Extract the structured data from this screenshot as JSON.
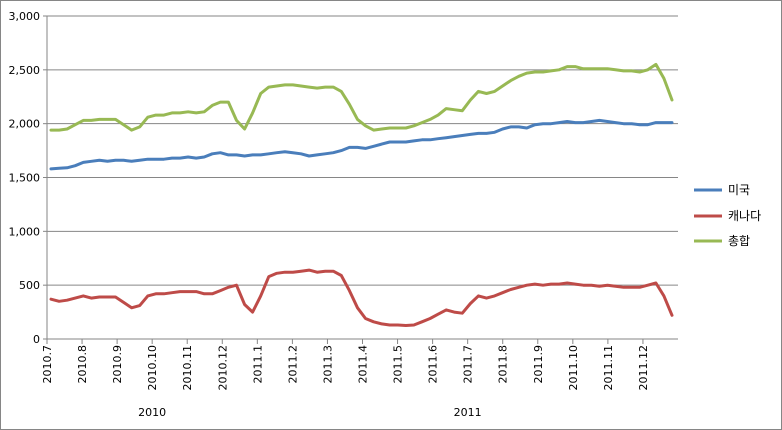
{
  "chart_data": {
    "type": "line",
    "title": "",
    "xlabel": "",
    "ylabel": "",
    "ylim": [
      0,
      3000
    ],
    "y_ticks": [
      "0",
      "500",
      "1,000",
      "1,500",
      "2,000",
      "2,500",
      "3,000"
    ],
    "x_tick_labels": [
      "2010.7",
      "2010.8",
      "2010.9",
      "2010.10",
      "2010.11",
      "2010.12",
      "2011.1",
      "2011.2",
      "2011.3",
      "2011.4",
      "2011.5",
      "2011.6",
      "2011.7",
      "2011.8",
      "2011.9",
      "2011.10",
      "2011.11",
      "2011.12"
    ],
    "year_labels": [
      "2010",
      "2011"
    ],
    "grid": "horizontal",
    "legend_position": "right",
    "colors": {
      "미국": "#4a7ebb",
      "캐나다": "#be4b48",
      "총합": "#98b954",
      "grid": "#868686"
    },
    "series": [
      {
        "name": "미국",
        "values": [
          1580,
          1585,
          1590,
          1610,
          1640,
          1650,
          1660,
          1650,
          1660,
          1660,
          1650,
          1660,
          1670,
          1670,
          1670,
          1680,
          1680,
          1690,
          1680,
          1690,
          1720,
          1730,
          1710,
          1710,
          1700,
          1710,
          1710,
          1720,
          1730,
          1740,
          1730,
          1720,
          1700,
          1710,
          1720,
          1730,
          1750,
          1780,
          1780,
          1770,
          1790,
          1810,
          1830,
          1830,
          1830,
          1840,
          1850,
          1850,
          1860,
          1870,
          1880,
          1890,
          1900,
          1910,
          1910,
          1920,
          1950,
          1970,
          1970,
          1960,
          1990,
          2000,
          2000,
          2010,
          2020,
          2010,
          2010,
          2020,
          2030,
          2020,
          2010,
          2000,
          2000,
          1990,
          1990,
          2010,
          2010,
          2010
        ]
      },
      {
        "name": "캐나다",
        "values": [
          370,
          350,
          360,
          380,
          400,
          380,
          390,
          390,
          390,
          340,
          290,
          310,
          400,
          420,
          420,
          430,
          440,
          440,
          440,
          420,
          420,
          450,
          480,
          500,
          320,
          250,
          400,
          580,
          610,
          620,
          620,
          630,
          640,
          620,
          630,
          630,
          590,
          450,
          290,
          190,
          160,
          140,
          130,
          130,
          125,
          130,
          160,
          190,
          230,
          270,
          250,
          240,
          330,
          400,
          380,
          400,
          430,
          460,
          480,
          500,
          510,
          500,
          510,
          510,
          520,
          510,
          500,
          500,
          490,
          500,
          490,
          480,
          480,
          480,
          500,
          520,
          400,
          220
        ]
      },
      {
        "name": "총합",
        "values": [
          1940,
          1940,
          1950,
          1990,
          2030,
          2030,
          2040,
          2040,
          2040,
          1990,
          1940,
          1970,
          2060,
          2080,
          2080,
          2100,
          2100,
          2110,
          2100,
          2110,
          2170,
          2200,
          2200,
          2030,
          1950,
          2100,
          2280,
          2340,
          2350,
          2360,
          2360,
          2350,
          2340,
          2330,
          2340,
          2340,
          2300,
          2180,
          2040,
          1980,
          1940,
          1950,
          1960,
          1960,
          1960,
          1980,
          2010,
          2040,
          2080,
          2140,
          2130,
          2120,
          2220,
          2300,
          2280,
          2300,
          2350,
          2400,
          2440,
          2470,
          2480,
          2480,
          2490,
          2500,
          2530,
          2530,
          2510,
          2510,
          2510,
          2510,
          2500,
          2490,
          2490,
          2480,
          2500,
          2550,
          2420,
          2220
        ]
      }
    ]
  }
}
